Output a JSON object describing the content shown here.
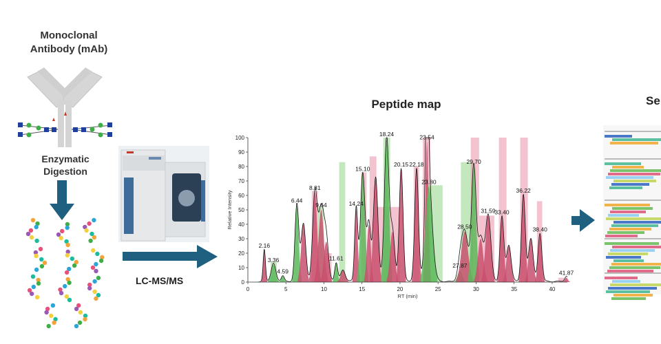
{
  "diagram": {
    "mab_title_line1": "Monoclonal",
    "mab_title_line2": "Antibody (mAb)",
    "digestion_line1": "Enzymatic",
    "digestion_line2": "Digestion",
    "lcms_label": "LC-MS/MS",
    "peptide_map_title": "Peptide map",
    "sequence_title_partial": "Se"
  },
  "colors": {
    "arrow": "#1f5f7f",
    "antibody": "#d3d3d3",
    "trace": "#111111",
    "highlight_pink": "#e7899f",
    "highlight_green": "#8ad27e",
    "fill_pink": "#c8506e",
    "fill_green": "#5cb85c"
  },
  "chart_data": {
    "type": "line",
    "title": "Peptide map",
    "xlabel": "RT (min)",
    "ylabel": "Relative Intensity",
    "xlim": [
      0,
      42
    ],
    "ylim": [
      0,
      100
    ],
    "x_ticks": [
      0,
      5,
      10,
      15,
      20,
      25,
      30,
      35,
      40
    ],
    "y_ticks": [
      0,
      10,
      20,
      30,
      40,
      50,
      60,
      70,
      80,
      90,
      100
    ],
    "peaks": [
      {
        "x": 2.16,
        "y": 22,
        "w": 0.15,
        "color": "pink",
        "label": "2.16"
      },
      {
        "x": 3.36,
        "y": 12,
        "w": 0.3,
        "color": "green",
        "label": "3.36"
      },
      {
        "x": 4.59,
        "y": 4,
        "w": 0.2,
        "color": "green",
        "label": "4.59"
      },
      {
        "x": 6.44,
        "y": 53,
        "w": 0.25,
        "color": "green",
        "label": "6.44"
      },
      {
        "x": 7.3,
        "y": 40,
        "w": 0.3,
        "color": "pink"
      },
      {
        "x": 8.81,
        "y": 62,
        "w": 0.3,
        "color": "pink",
        "label": "8.81"
      },
      {
        "x": 9.64,
        "y": 50,
        "w": 0.35,
        "color": "pink",
        "label": "9.64"
      },
      {
        "x": 10.3,
        "y": 28,
        "w": 0.3,
        "color": "pink"
      },
      {
        "x": 11.61,
        "y": 13,
        "w": 0.2,
        "color": "green",
        "label": "11.61"
      },
      {
        "x": 12.5,
        "y": 8,
        "w": 0.3,
        "color": "pink"
      },
      {
        "x": 14.24,
        "y": 51,
        "w": 0.2,
        "color": "pink",
        "label": "14.24"
      },
      {
        "x": 15.1,
        "y": 75,
        "w": 0.3,
        "color": "green",
        "label": "15.10"
      },
      {
        "x": 15.9,
        "y": 40,
        "w": 0.25,
        "color": "pink"
      },
      {
        "x": 16.8,
        "y": 72,
        "w": 0.3,
        "color": "pink"
      },
      {
        "x": 18.24,
        "y": 99,
        "w": 0.3,
        "color": "green",
        "label": "18.24"
      },
      {
        "x": 19.0,
        "y": 35,
        "w": 0.3,
        "color": "pink"
      },
      {
        "x": 20.15,
        "y": 78,
        "w": 0.25,
        "color": "pink",
        "label": "20.15"
      },
      {
        "x": 22.18,
        "y": 78,
        "w": 0.25,
        "color": "pink",
        "label": "22.18"
      },
      {
        "x": 23.54,
        "y": 97,
        "w": 0.2,
        "color": "pink",
        "label": "23.54"
      },
      {
        "x": 23.8,
        "y": 66,
        "w": 0.45,
        "color": "green",
        "label": "23.80"
      },
      {
        "x": 27.87,
        "y": 8,
        "w": 0.3,
        "color": "green",
        "label": "27.87"
      },
      {
        "x": 28.5,
        "y": 35,
        "w": 0.45,
        "color": "pink",
        "label": "28.50"
      },
      {
        "x": 29.7,
        "y": 80,
        "w": 0.3,
        "color": "green",
        "label": "29.70"
      },
      {
        "x": 30.6,
        "y": 30,
        "w": 0.35,
        "color": "pink"
      },
      {
        "x": 31.59,
        "y": 46,
        "w": 0.35,
        "color": "pink",
        "label": "31.59"
      },
      {
        "x": 33.4,
        "y": 45,
        "w": 0.25,
        "color": "pink",
        "label": "33.40"
      },
      {
        "x": 34.3,
        "y": 25,
        "w": 0.3,
        "color": "pink"
      },
      {
        "x": 36.22,
        "y": 60,
        "w": 0.25,
        "color": "pink",
        "label": "36.22"
      },
      {
        "x": 37.2,
        "y": 30,
        "w": 0.3,
        "color": "pink"
      },
      {
        "x": 38.4,
        "y": 33,
        "w": 0.25,
        "color": "pink",
        "label": "38.40"
      },
      {
        "x": 41.87,
        "y": 3,
        "w": 0.2,
        "color": "pink",
        "label": "41.87"
      }
    ],
    "highlight_bands": [
      {
        "x0": 3.0,
        "x1": 3.8,
        "top": 14,
        "color": "green"
      },
      {
        "x0": 8.4,
        "x1": 9.2,
        "top": 63,
        "color": "pink"
      },
      {
        "x0": 9.2,
        "x1": 10.0,
        "top": 52,
        "color": "green"
      },
      {
        "x0": 10.2,
        "x1": 11.0,
        "top": 20,
        "color": "pink"
      },
      {
        "x0": 12.0,
        "x1": 12.8,
        "top": 83,
        "color": "green"
      },
      {
        "x0": 14.9,
        "x1": 15.6,
        "top": 76,
        "color": "pink"
      },
      {
        "x0": 16.0,
        "x1": 16.9,
        "top": 87,
        "color": "pink"
      },
      {
        "x0": 16.9,
        "x1": 20.0,
        "top": 52,
        "color": "pink"
      },
      {
        "x0": 17.8,
        "x1": 18.7,
        "top": 100,
        "color": "green"
      },
      {
        "x0": 21.8,
        "x1": 22.5,
        "top": 80,
        "color": "pink"
      },
      {
        "x0": 23.0,
        "x1": 24.0,
        "top": 100,
        "color": "pink"
      },
      {
        "x0": 23.6,
        "x1": 25.6,
        "top": 67,
        "color": "green"
      },
      {
        "x0": 28.0,
        "x1": 29.6,
        "top": 83,
        "color": "green"
      },
      {
        "x0": 29.3,
        "x1": 30.4,
        "top": 100,
        "color": "pink"
      },
      {
        "x0": 30.4,
        "x1": 32.4,
        "top": 46,
        "color": "pink"
      },
      {
        "x0": 33.0,
        "x1": 34.0,
        "top": 100,
        "color": "pink"
      },
      {
        "x0": 35.8,
        "x1": 36.8,
        "top": 100,
        "color": "pink"
      },
      {
        "x0": 38.0,
        "x1": 38.7,
        "top": 56,
        "color": "pink"
      },
      {
        "x0": 40.8,
        "x1": 41.6,
        "top": 3,
        "color": "pink"
      }
    ]
  }
}
